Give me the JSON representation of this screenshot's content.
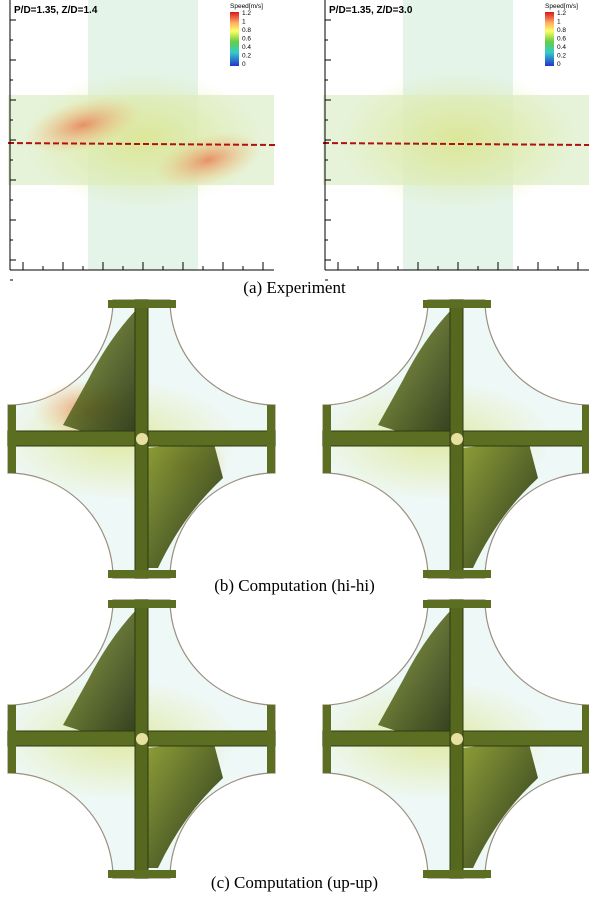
{
  "figure": {
    "rows": [
      {
        "caption": "(a) Experiment",
        "panels": [
          {
            "label": "P/D=1.35, Z/D=1.4",
            "legend": {
              "title": "Speed[m/s]",
              "ticks": [
                1.2,
                1,
                0.8,
                0.6,
                0.4,
                0.2,
                0
              ]
            }
          },
          {
            "label": "P/D=1.35, Z/D=3.0",
            "legend": {
              "title": "Speed[m/s]",
              "ticks": [
                1.2,
                1,
                0.8,
                0.6,
                0.4,
                0.2,
                0
              ]
            }
          }
        ]
      },
      {
        "caption": "(b) Computation (hi-hi)"
      },
      {
        "caption": "(c) Computation (up-up)"
      }
    ]
  }
}
